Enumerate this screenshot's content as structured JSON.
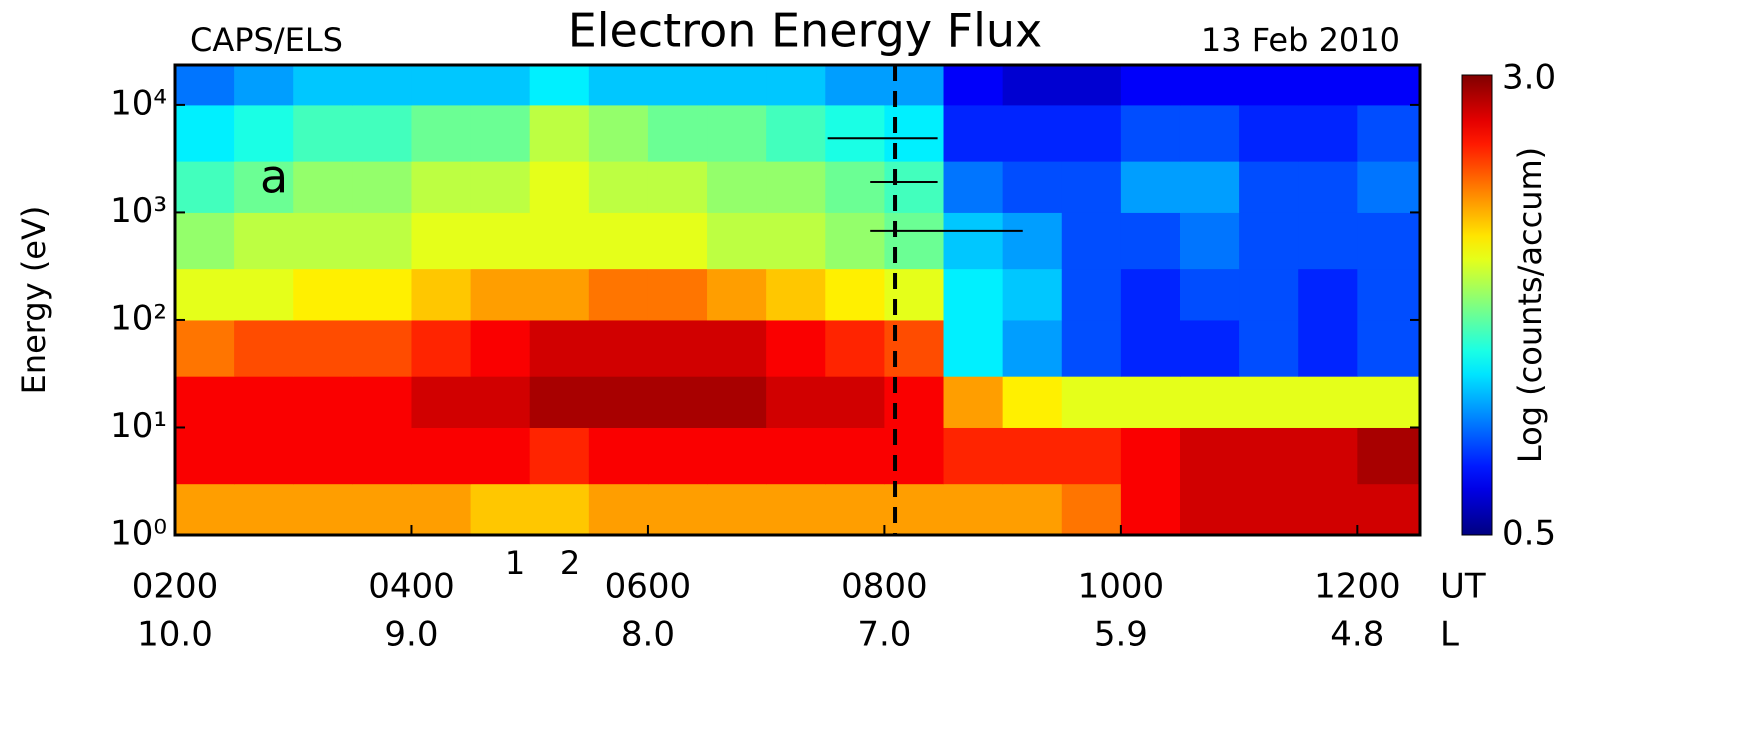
{
  "chart_data": {
    "type": "heatmap",
    "title": "Electron Energy Flux",
    "instrument": "CAPS/ELS",
    "date": "13 Feb 2010",
    "panel_label": "a",
    "event_labels": [
      "1",
      "2"
    ],
    "y_label": "Energy (eV)",
    "x_label": "UT",
    "x2_label": "L",
    "colorbar_label": "Log (counts/accum)",
    "y_log": true,
    "colormap": "jet",
    "xlim": [
      2,
      12.53
    ],
    "xticks": [
      {
        "value": 2,
        "label": "0200"
      },
      {
        "value": 4,
        "label": "0400"
      },
      {
        "value": 6,
        "label": "0600"
      },
      {
        "value": 8,
        "label": "0800"
      },
      {
        "value": 10,
        "label": "1000"
      },
      {
        "value": 12,
        "label": "1200"
      }
    ],
    "xticks2": [
      {
        "value": 10,
        "label": "10.0"
      },
      {
        "value": 9,
        "label": "9.0"
      },
      {
        "value": 8,
        "label": "8.0"
      },
      {
        "value": 7,
        "label": "7.0"
      },
      5.9,
      4.8
    ],
    "ylim": [
      1,
      23500
    ],
    "yticks": [
      {
        "value": 1,
        "label": "10⁰"
      },
      {
        "value": 10,
        "label": "10¹"
      },
      {
        "value": 100,
        "label": "10²"
      },
      {
        "value": 1000,
        "label": "10³"
      },
      {
        "value": 10000,
        "label": "10⁴"
      }
    ],
    "zlim": [
      0.5,
      3.0
    ],
    "zticks": [
      0.5,
      {
        "value": 3.0,
        "label": "3.0"
      }
    ],
    "x": [
      2,
      2.5,
      3,
      3.5,
      4,
      4.5,
      5,
      5.5,
      6,
      6.5,
      7,
      7.5,
      8,
      8.5,
      9,
      9.5,
      10,
      10.5,
      11,
      11.5,
      12
    ],
    "y": [
      1,
      3,
      10,
      30,
      100,
      300,
      1000,
      3000,
      10000
    ],
    "z": [
      [
        2.3,
        2.3,
        2.3,
        2.3,
        2.3,
        2.2,
        2.2,
        2.3,
        2.3,
        2.3,
        2.3,
        2.3,
        2.3,
        2.3,
        2.3,
        2.4,
        2.7,
        2.8,
        2.8,
        2.8,
        2.8
      ],
      [
        2.7,
        2.7,
        2.7,
        2.7,
        2.7,
        2.7,
        2.6,
        2.7,
        2.7,
        2.7,
        2.7,
        2.7,
        2.7,
        2.6,
        2.6,
        2.6,
        2.7,
        2.8,
        2.8,
        2.8,
        2.9
      ],
      [
        2.7,
        2.7,
        2.7,
        2.7,
        2.8,
        2.8,
        2.9,
        2.9,
        2.9,
        2.9,
        2.8,
        2.8,
        2.7,
        2.3,
        2.1,
        2.0,
        2.0,
        2.0,
        2.0,
        2.0,
        2.0
      ],
      [
        2.4,
        2.5,
        2.5,
        2.5,
        2.6,
        2.7,
        2.8,
        2.8,
        2.8,
        2.8,
        2.7,
        2.6,
        2.5,
        1.4,
        1.2,
        1.0,
        0.9,
        0.9,
        1.0,
        0.9,
        1.0
      ],
      [
        2.0,
        2.0,
        2.1,
        2.1,
        2.2,
        2.3,
        2.3,
        2.4,
        2.4,
        2.3,
        2.2,
        2.1,
        2.0,
        1.4,
        1.3,
        1.0,
        0.9,
        1.0,
        1.0,
        0.9,
        1.0
      ],
      [
        1.8,
        1.9,
        1.9,
        1.9,
        2.0,
        2.0,
        2.0,
        2.0,
        2.0,
        1.9,
        1.9,
        1.8,
        1.7,
        1.3,
        1.2,
        1.0,
        1.0,
        1.1,
        1.0,
        1.0,
        1.0
      ],
      [
        1.6,
        1.7,
        1.8,
        1.8,
        1.9,
        1.9,
        2.0,
        1.9,
        1.9,
        1.8,
        1.8,
        1.7,
        1.6,
        1.1,
        1.0,
        1.0,
        1.2,
        1.2,
        1.0,
        1.0,
        1.1
      ],
      [
        1.4,
        1.5,
        1.6,
        1.6,
        1.7,
        1.7,
        1.9,
        1.8,
        1.7,
        1.7,
        1.6,
        1.5,
        1.4,
        0.9,
        0.9,
        0.9,
        1.0,
        1.0,
        0.9,
        0.9,
        1.0
      ],
      [
        1.1,
        1.2,
        1.3,
        1.3,
        1.3,
        1.3,
        1.4,
        1.3,
        1.3,
        1.3,
        1.3,
        1.2,
        1.2,
        0.8,
        0.7,
        0.7,
        0.8,
        0.8,
        0.8,
        0.8,
        0.8
      ]
    ],
    "event_time": 8.09,
    "marker_lines": [
      {
        "x": [
          7.52,
          8.45
        ],
        "y": 4900
      },
      {
        "x": [
          7.88,
          8.45
        ],
        "y": 1920
      },
      {
        "x": [
          7.88,
          9.17
        ],
        "y": 673
      }
    ]
  }
}
